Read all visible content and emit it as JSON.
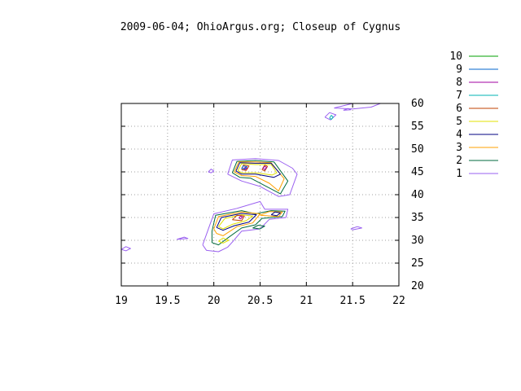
{
  "chart_data": {
    "type": "contour",
    "title": "2009-06-04; OhioArgus.org; Closeup of Cygnus",
    "xlabel": "",
    "ylabel": "",
    "xlim": [
      19,
      22
    ],
    "ylim": [
      20,
      60
    ],
    "x_ticks": [
      "19",
      "19.5",
      "20",
      "20.5",
      "21",
      "21.5",
      "22"
    ],
    "x_tick_values": [
      19,
      19.5,
      20,
      20.5,
      21,
      21.5,
      22
    ],
    "y_ticks": [
      "20",
      "25",
      "30",
      "35",
      "40",
      "45",
      "50",
      "55",
      "60"
    ],
    "y_tick_values": [
      20,
      25,
      30,
      35,
      40,
      45,
      50,
      55,
      60
    ],
    "y_axis_side": "right",
    "grid": true,
    "legend_position": "top-right",
    "series": [
      {
        "name": "10",
        "color": "#00a000",
        "contours": []
      },
      {
        "name": "9",
        "color": "#0066cc",
        "contours": [
          [
            [
              20.3,
              45.8
            ],
            [
              20.32,
              46.3
            ],
            [
              20.36,
              46.1
            ],
            [
              20.33,
              45.6
            ],
            [
              20.3,
              45.8
            ]
          ]
        ]
      },
      {
        "name": "8",
        "color": "#a000a0",
        "contours": [
          [
            [
              20.32,
              45.7
            ],
            [
              20.34,
              46.0
            ],
            [
              20.36,
              45.8
            ],
            [
              20.34,
              45.5
            ],
            [
              20.32,
              45.7
            ]
          ],
          [
            [
              20.53,
              45.8
            ],
            [
              20.55,
              46.2
            ],
            [
              20.57,
              46.0
            ],
            [
              20.55,
              45.5
            ],
            [
              20.53,
              45.8
            ]
          ],
          [
            [
              20.27,
              34.9
            ],
            [
              20.29,
              35.3
            ],
            [
              20.31,
              35.1
            ],
            [
              20.29,
              34.7
            ],
            [
              20.27,
              34.9
            ]
          ]
        ]
      },
      {
        "name": "7",
        "color": "#00b3b3",
        "contours": [
          [
            [
              21.25,
              56.8
            ],
            [
              21.27,
              57.4
            ],
            [
              21.29,
              57.0
            ],
            [
              21.27,
              56.5
            ],
            [
              21.25,
              56.8
            ]
          ]
        ]
      },
      {
        "name": "6",
        "color": "#c04000",
        "contours": [
          [
            [
              20.3,
              45.5
            ],
            [
              20.32,
              46.5
            ],
            [
              20.38,
              46.3
            ],
            [
              20.35,
              45.3
            ],
            [
              20.3,
              45.5
            ]
          ],
          [
            [
              20.52,
              45.5
            ],
            [
              20.55,
              46.5
            ],
            [
              20.58,
              46.2
            ],
            [
              20.55,
              45.2
            ],
            [
              20.52,
              45.5
            ]
          ],
          [
            [
              20.2,
              34.5
            ],
            [
              20.25,
              35.5
            ],
            [
              20.33,
              35.3
            ],
            [
              20.3,
              34.3
            ],
            [
              20.2,
              34.5
            ]
          ]
        ]
      },
      {
        "name": "5",
        "color": "#e0e000",
        "contours": [
          [
            [
              20.26,
              45.3
            ],
            [
              20.3,
              46.8
            ],
            [
              20.45,
              46.6
            ],
            [
              20.62,
              46.6
            ],
            [
              20.68,
              44.8
            ],
            [
              20.63,
              44.3
            ],
            [
              20.45,
              44.8
            ],
            [
              20.3,
              44.8
            ],
            [
              20.26,
              45.3
            ]
          ],
          [
            [
              20.05,
              33.0
            ],
            [
              20.12,
              34.8
            ],
            [
              20.3,
              35.6
            ],
            [
              20.42,
              35.3
            ],
            [
              20.35,
              34.3
            ],
            [
              20.2,
              33.5
            ],
            [
              20.1,
              32.5
            ],
            [
              20.05,
              33.0
            ]
          ],
          [
            [
              20.05,
              29.8
            ],
            [
              20.1,
              30.5
            ],
            [
              20.16,
              30.0
            ],
            [
              20.1,
              29.4
            ],
            [
              20.05,
              29.8
            ]
          ]
        ]
      },
      {
        "name": "4",
        "color": "#000080",
        "contours": [
          [
            [
              20.24,
              45.2
            ],
            [
              20.28,
              47.0
            ],
            [
              20.45,
              46.9
            ],
            [
              20.62,
              46.9
            ],
            [
              20.72,
              44.5
            ],
            [
              20.65,
              43.8
            ],
            [
              20.45,
              44.5
            ],
            [
              20.3,
              44.5
            ],
            [
              20.24,
              45.2
            ]
          ],
          [
            [
              20.03,
              32.8
            ],
            [
              20.08,
              35.0
            ],
            [
              20.3,
              35.9
            ],
            [
              20.46,
              35.6
            ],
            [
              20.38,
              34.0
            ],
            [
              20.22,
              33.2
            ],
            [
              20.1,
              32.2
            ],
            [
              20.03,
              32.8
            ]
          ],
          [
            [
              20.62,
              35.6
            ],
            [
              20.66,
              36.2
            ],
            [
              20.72,
              36.0
            ],
            [
              20.68,
              35.4
            ],
            [
              20.62,
              35.6
            ]
          ]
        ]
      },
      {
        "name": "3",
        "color": "#ffa000",
        "contours": [
          [
            [
              20.22,
              45.0
            ],
            [
              20.27,
              47.2
            ],
            [
              20.45,
              47.2
            ],
            [
              20.62,
              47.0
            ],
            [
              20.76,
              43.5
            ],
            [
              20.7,
              40.8
            ],
            [
              20.6,
              42.5
            ],
            [
              20.45,
              44.0
            ],
            [
              20.3,
              44.2
            ],
            [
              20.22,
              45.0
            ]
          ],
          [
            [
              20.0,
              32.5
            ],
            [
              20.05,
              35.2
            ],
            [
              20.3,
              36.2
            ],
            [
              20.5,
              35.8
            ],
            [
              20.42,
              33.8
            ],
            [
              20.25,
              33.0
            ],
            [
              20.1,
              31.0
            ],
            [
              20.03,
              31.5
            ],
            [
              20.0,
              32.5
            ]
          ],
          [
            [
              20.5,
              35.5
            ],
            [
              20.6,
              36.3
            ],
            [
              20.74,
              36.2
            ],
            [
              20.7,
              35.2
            ],
            [
              20.5,
              35.5
            ]
          ]
        ]
      },
      {
        "name": "2",
        "color": "#006a3c",
        "contours": [
          [
            [
              20.2,
              44.8
            ],
            [
              20.25,
              47.3
            ],
            [
              20.45,
              47.5
            ],
            [
              20.65,
              47.2
            ],
            [
              20.8,
              43.0
            ],
            [
              20.72,
              40.2
            ],
            [
              20.55,
              42.0
            ],
            [
              20.4,
              43.6
            ],
            [
              20.28,
              43.8
            ],
            [
              20.2,
              44.8
            ]
          ],
          [
            [
              19.98,
              32.0
            ],
            [
              20.02,
              35.5
            ],
            [
              20.3,
              36.5
            ],
            [
              20.45,
              35.8
            ],
            [
              20.62,
              36.5
            ],
            [
              20.77,
              36.4
            ],
            [
              20.74,
              35.2
            ],
            [
              20.52,
              34.8
            ],
            [
              20.45,
              33.4
            ],
            [
              20.3,
              32.7
            ],
            [
              20.15,
              30.5
            ],
            [
              20.05,
              29.0
            ],
            [
              19.98,
              29.5
            ],
            [
              19.98,
              32.0
            ]
          ],
          [
            [
              20.42,
              32.7
            ],
            [
              20.48,
              33.3
            ],
            [
              20.55,
              33.1
            ],
            [
              20.5,
              32.5
            ],
            [
              20.42,
              32.7
            ]
          ]
        ]
      },
      {
        "name": "1",
        "color": "#9a60f0",
        "contours": [
          [
            [
              20.15,
              44.5
            ],
            [
              20.2,
              47.6
            ],
            [
              20.45,
              47.9
            ],
            [
              20.7,
              47.5
            ],
            [
              20.85,
              45.8
            ],
            [
              20.9,
              44.5
            ],
            [
              20.82,
              40.0
            ],
            [
              20.7,
              39.6
            ],
            [
              20.5,
              41.8
            ],
            [
              20.3,
              43.0
            ],
            [
              20.15,
              44.5
            ]
          ],
          [
            [
              19.88,
              29.0
            ],
            [
              19.95,
              33.0
            ],
            [
              20.0,
              35.8
            ],
            [
              20.25,
              37.0
            ],
            [
              20.5,
              38.5
            ],
            [
              20.55,
              36.8
            ],
            [
              20.8,
              36.8
            ],
            [
              20.78,
              35.0
            ],
            [
              20.6,
              34.6
            ],
            [
              20.5,
              32.5
            ],
            [
              20.3,
              32.0
            ],
            [
              20.2,
              29.6
            ],
            [
              20.15,
              28.5
            ],
            [
              20.05,
              27.5
            ],
            [
              19.92,
              27.8
            ],
            [
              19.88,
              29.0
            ]
          ],
          [
            [
              19.0,
              28.0
            ],
            [
              19.05,
              28.6
            ],
            [
              19.1,
              28.2
            ],
            [
              19.05,
              27.7
            ],
            [
              19.0,
              28.0
            ]
          ],
          [
            [
              21.48,
              32.5
            ],
            [
              21.55,
              33.0
            ],
            [
              21.6,
              32.7
            ],
            [
              21.5,
              32.3
            ],
            [
              21.48,
              32.5
            ]
          ],
          [
            [
              19.94,
              45.0
            ],
            [
              19.97,
              45.6
            ],
            [
              20.0,
              45.2
            ],
            [
              19.97,
              44.8
            ],
            [
              19.94,
              45.0
            ]
          ],
          [
            [
              21.3,
              59.0
            ],
            [
              21.5,
              60.0
            ],
            [
              21.8,
              60.0
            ],
            [
              21.7,
              59.2
            ],
            [
              21.5,
              58.8
            ],
            [
              21.3,
              59.0
            ]
          ],
          [
            [
              21.2,
              57.0
            ],
            [
              21.25,
              58.0
            ],
            [
              21.32,
              57.5
            ],
            [
              21.26,
              56.4
            ],
            [
              21.2,
              57.0
            ]
          ],
          [
            [
              21.4,
              58.5
            ],
            [
              21.45,
              58.9
            ],
            [
              21.48,
              58.6
            ],
            [
              21.4,
              58.5
            ]
          ],
          [
            [
              19.6,
              30.2
            ],
            [
              19.68,
              30.7
            ],
            [
              19.72,
              30.4
            ],
            [
              19.6,
              30.2
            ]
          ]
        ]
      }
    ]
  }
}
